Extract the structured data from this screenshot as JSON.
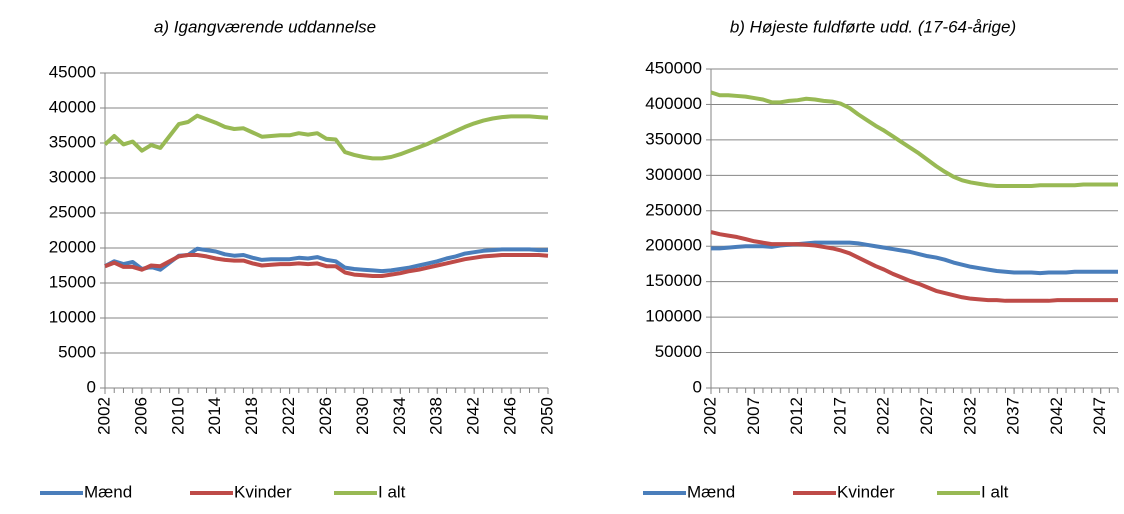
{
  "chart_data": [
    {
      "type": "line",
      "title": "a) Igangværende uddannelse",
      "x": [
        2002,
        2003,
        2004,
        2005,
        2006,
        2007,
        2008,
        2009,
        2010,
        2011,
        2012,
        2013,
        2014,
        2015,
        2016,
        2017,
        2018,
        2019,
        2020,
        2021,
        2022,
        2023,
        2024,
        2025,
        2026,
        2027,
        2028,
        2029,
        2030,
        2031,
        2032,
        2033,
        2034,
        2035,
        2036,
        2037,
        2038,
        2039,
        2040,
        2041,
        2042,
        2043,
        2044,
        2045,
        2046,
        2047,
        2048,
        2049,
        2050
      ],
      "xlim": [
        2002,
        2050
      ],
      "xticks": [
        2002,
        2006,
        2010,
        2014,
        2018,
        2022,
        2026,
        2030,
        2034,
        2038,
        2042,
        2046,
        2050
      ],
      "ylim": [
        0,
        45000
      ],
      "yticks": [
        0,
        5000,
        10000,
        15000,
        20000,
        25000,
        30000,
        35000,
        40000,
        45000
      ],
      "grid": true,
      "legend": "bottom",
      "series": [
        {
          "name": "Mænd",
          "color": "#4a7ebb",
          "values": [
            17400,
            18100,
            17700,
            18000,
            17000,
            17300,
            16900,
            17900,
            18900,
            19000,
            19900,
            19700,
            19500,
            19100,
            18900,
            19000,
            18600,
            18300,
            18400,
            18400,
            18400,
            18600,
            18500,
            18700,
            18300,
            18100,
            17200,
            17000,
            16900,
            16800,
            16700,
            16800,
            17000,
            17200,
            17500,
            17800,
            18100,
            18500,
            18800,
            19200,
            19400,
            19600,
            19700,
            19800,
            19800,
            19800,
            19800,
            19700,
            19700
          ]
        },
        {
          "name": "Kvinder",
          "color": "#be4b48",
          "values": [
            17400,
            17900,
            17300,
            17300,
            16900,
            17500,
            17400,
            18100,
            18800,
            19000,
            19000,
            18800,
            18500,
            18300,
            18200,
            18200,
            17800,
            17500,
            17600,
            17700,
            17700,
            17800,
            17700,
            17800,
            17400,
            17400,
            16500,
            16200,
            16100,
            16000,
            16000,
            16200,
            16400,
            16700,
            16900,
            17200,
            17500,
            17800,
            18100,
            18400,
            18600,
            18800,
            18900,
            19000,
            19000,
            19000,
            19000,
            19000,
            18900
          ]
        },
        {
          "name": "I alt",
          "color": "#98b954",
          "values": [
            34800,
            36000,
            34800,
            35200,
            33900,
            34700,
            34300,
            36000,
            37700,
            38000,
            38900,
            38400,
            37900,
            37300,
            37000,
            37100,
            36500,
            35900,
            36000,
            36100,
            36100,
            36400,
            36200,
            36400,
            35600,
            35500,
            33700,
            33300,
            33000,
            32800,
            32800,
            33000,
            33400,
            33900,
            34400,
            34900,
            35500,
            36100,
            36700,
            37300,
            37800,
            38200,
            38500,
            38700,
            38800,
            38800,
            38800,
            38700,
            38600
          ]
        }
      ]
    },
    {
      "type": "line",
      "title": "b) Højeste fuldførte udd. (17-64-årige)",
      "x": [
        2002,
        2003,
        2004,
        2005,
        2006,
        2007,
        2008,
        2009,
        2010,
        2011,
        2012,
        2013,
        2014,
        2015,
        2016,
        2017,
        2018,
        2019,
        2020,
        2021,
        2022,
        2023,
        2024,
        2025,
        2026,
        2027,
        2028,
        2029,
        2030,
        2031,
        2032,
        2033,
        2034,
        2035,
        2036,
        2037,
        2038,
        2039,
        2040,
        2041,
        2042,
        2043,
        2044,
        2045,
        2046,
        2047,
        2048,
        2049
      ],
      "xlim": [
        2002,
        2049
      ],
      "xticks": [
        2002,
        2007,
        2012,
        2017,
        2022,
        2027,
        2032,
        2037,
        2042,
        2047
      ],
      "ylim": [
        0,
        450000
      ],
      "yticks": [
        0,
        50000,
        100000,
        150000,
        200000,
        250000,
        300000,
        350000,
        400000,
        450000
      ],
      "grid": true,
      "legend": "bottom",
      "series": [
        {
          "name": "Mænd",
          "color": "#4a7ebb",
          "values": [
            197000,
            197000,
            198000,
            199000,
            200000,
            200000,
            200000,
            199000,
            201000,
            202000,
            203000,
            204000,
            205000,
            205000,
            205000,
            205000,
            205000,
            204000,
            202000,
            200000,
            198000,
            196000,
            194000,
            192000,
            189000,
            186000,
            184000,
            181000,
            177000,
            174000,
            171000,
            169000,
            167000,
            165000,
            164000,
            163000,
            163000,
            163000,
            162000,
            163000,
            163000,
            163000,
            164000,
            164000,
            164000,
            164000,
            164000,
            164000
          ]
        },
        {
          "name": "Kvinder",
          "color": "#be4b48",
          "values": [
            220000,
            217000,
            215000,
            213000,
            210000,
            207000,
            205000,
            203000,
            203000,
            203000,
            203000,
            202000,
            201000,
            199000,
            197000,
            194000,
            190000,
            184000,
            178000,
            172000,
            167000,
            161000,
            156000,
            151000,
            147000,
            142000,
            137000,
            134000,
            131000,
            128000,
            126000,
            125000,
            124000,
            124000,
            123000,
            123000,
            123000,
            123000,
            123000,
            123000,
            124000,
            124000,
            124000,
            124000,
            124000,
            124000,
            124000,
            124000
          ]
        },
        {
          "name": "I alt",
          "color": "#98b954",
          "values": [
            417000,
            413000,
            413000,
            412000,
            411000,
            409000,
            407000,
            403000,
            403000,
            405000,
            406000,
            408000,
            407000,
            405000,
            404000,
            401000,
            395000,
            386000,
            378000,
            370000,
            363000,
            355000,
            347000,
            339000,
            331000,
            322000,
            313000,
            305000,
            298000,
            293000,
            290000,
            288000,
            286000,
            285000,
            285000,
            285000,
            285000,
            285000,
            286000,
            286000,
            286000,
            286000,
            286000,
            287000,
            287000,
            287000,
            287000,
            287000
          ]
        }
      ]
    }
  ]
}
